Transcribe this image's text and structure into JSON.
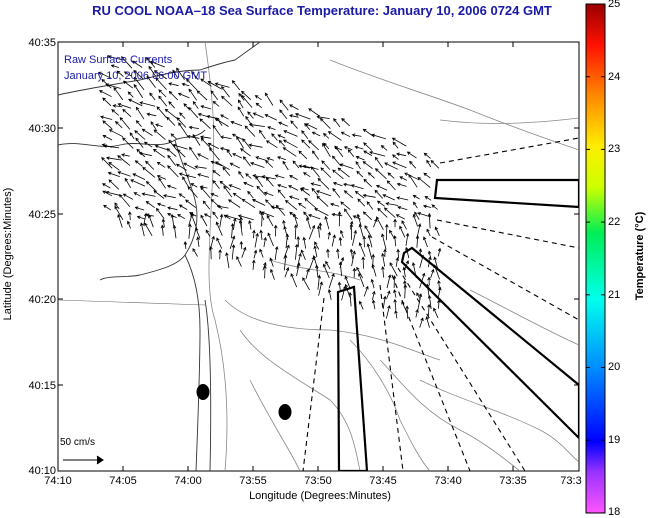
{
  "title": "RU COOL  NOAA–18  Sea Surface Temperature:  January 10, 2006 0724 GMT",
  "legend": {
    "line1": "Raw Surface Currents",
    "line2": "January 10, 2006 06:00 GMT"
  },
  "axes": {
    "xlabel": "Longitude (Degrees:Minutes)",
    "ylabel": "Latitude (Degrees:Minutes)",
    "xticks": [
      "74:10",
      "74:05",
      "74:00",
      "73:55",
      "73:50",
      "73:45",
      "73:40",
      "73:35",
      "73:3"
    ],
    "yticks": [
      "40:35",
      "40:30",
      "40:25",
      "40:20",
      "40:15",
      "40:10"
    ]
  },
  "colorbar": {
    "label": "Temperature (°C)",
    "ticks": [
      "25",
      "24",
      "23",
      "22",
      "21",
      "20",
      "19",
      "18"
    ]
  },
  "scale_label": "50 cm/s",
  "colors": {
    "title": "#1a1aa6",
    "arrows": "#000000",
    "coast": "#333333",
    "contours": "#888888"
  }
}
